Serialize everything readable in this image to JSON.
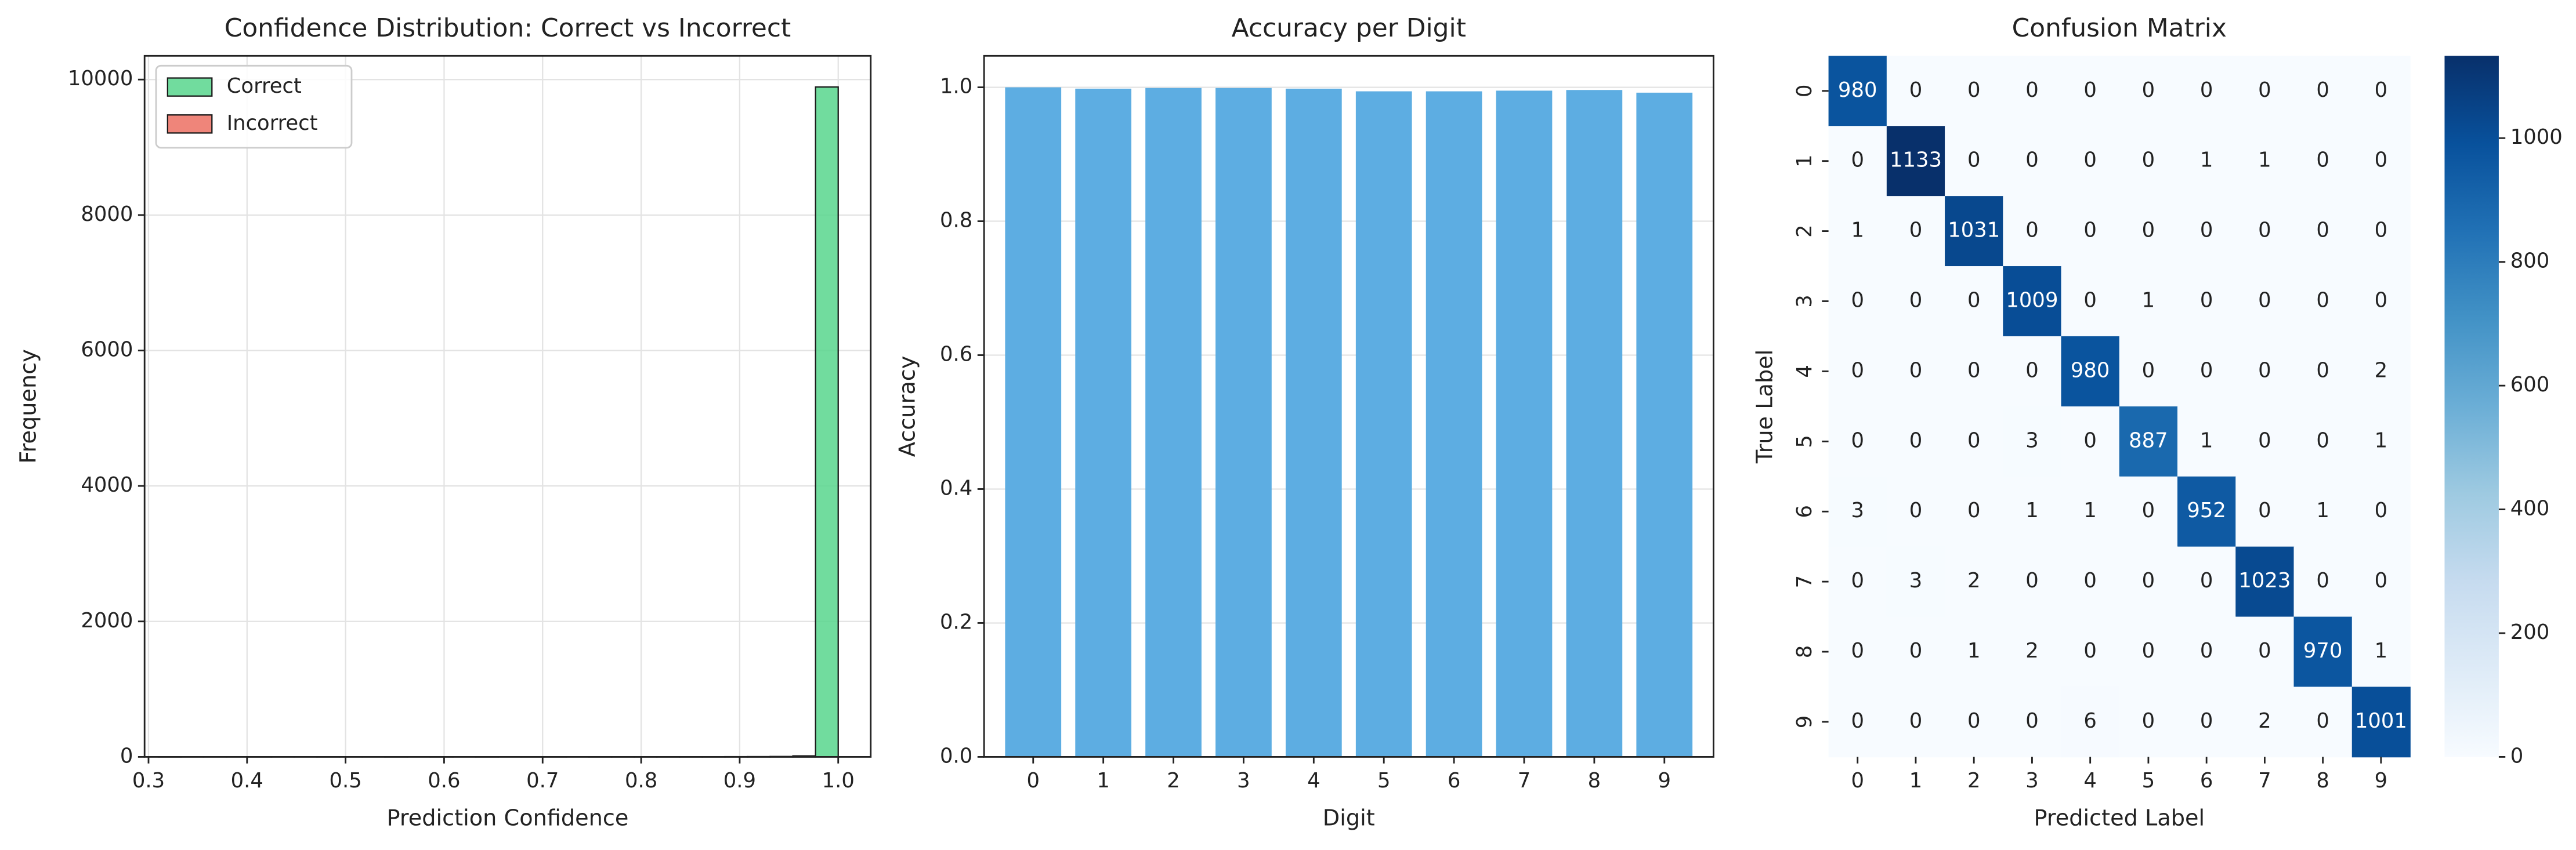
{
  "chart_data": [
    {
      "type": "histogram",
      "title": "Confidence Distribution: Correct vs Incorrect",
      "x_label": "Prediction Confidence",
      "y_label": "Frequency",
      "bins": [
        0.31,
        0.333,
        0.356,
        0.379,
        0.402,
        0.425,
        0.448,
        0.471,
        0.494,
        0.517,
        0.54,
        0.563,
        0.586,
        0.609,
        0.632,
        0.655,
        0.678,
        0.701,
        0.724,
        0.747,
        0.77,
        0.793,
        0.816,
        0.839,
        0.862,
        0.885,
        0.908,
        0.931,
        0.954,
        0.977,
        1.0
      ],
      "series": [
        {
          "name": "Correct",
          "color": "#58d68d",
          "values": [
            1,
            0,
            0,
            0,
            1,
            0,
            0,
            1,
            0,
            0,
            1,
            0,
            1,
            0,
            1,
            0,
            1,
            1,
            0,
            1,
            1,
            2,
            1,
            2,
            2,
            3,
            4,
            6,
            15,
            9890
          ]
        },
        {
          "name": "Incorrect",
          "color": "#ec7063",
          "values": [
            1,
            1,
            2,
            1,
            1,
            2,
            1,
            2,
            1,
            2,
            1,
            1,
            2,
            1,
            2,
            1,
            1,
            1,
            1,
            1,
            1,
            1,
            1,
            1,
            1,
            1,
            1,
            1,
            1,
            0
          ]
        }
      ],
      "xlim": [
        0.296,
        1.033
      ],
      "xticks": [
        0.3,
        0.4,
        0.5,
        0.6,
        0.7,
        0.8,
        0.9,
        {
          "value": 1,
          "label": "1.0"
        }
      ],
      "ylim": [
        0,
        10350
      ],
      "yticks": [
        0,
        2000,
        4000,
        6000,
        8000,
        10000
      ],
      "grid": "both",
      "legend": "upper left"
    },
    {
      "type": "bar",
      "title": "Accuracy per Digit",
      "x_label": "Digit",
      "y_label": "Accuracy",
      "categories": [
        "0",
        "1",
        "2",
        "3",
        "4",
        "5",
        "6",
        "7",
        "8",
        "9"
      ],
      "values": [
        1.0,
        0.998,
        0.999,
        0.999,
        0.998,
        0.994,
        0.994,
        0.995,
        0.996,
        0.992
      ],
      "color": "#5dade2",
      "ylim": [
        0,
        1.047
      ],
      "yticks": [
        {
          "value": 0,
          "label": "0.0"
        },
        0.2,
        0.4,
        0.6,
        0.8,
        {
          "value": 1,
          "label": "1.0"
        }
      ],
      "grid": "y"
    },
    {
      "type": "heatmap",
      "title": "Confusion Matrix",
      "x_label": "Predicted Label",
      "y_label": "True Label",
      "x_categories": [
        "0",
        "1",
        "2",
        "3",
        "4",
        "5",
        "6",
        "7",
        "8",
        "9"
      ],
      "y_categories": [
        "0",
        "1",
        "2",
        "3",
        "4",
        "5",
        "6",
        "7",
        "8",
        "9"
      ],
      "matrix": [
        [
          980,
          0,
          0,
          0,
          0,
          0,
          0,
          0,
          0,
          0
        ],
        [
          0,
          1133,
          0,
          0,
          0,
          0,
          1,
          1,
          0,
          0
        ],
        [
          1,
          0,
          1031,
          0,
          0,
          0,
          0,
          0,
          0,
          0
        ],
        [
          0,
          0,
          0,
          1009,
          0,
          1,
          0,
          0,
          0,
          0
        ],
        [
          0,
          0,
          0,
          0,
          980,
          0,
          0,
          0,
          0,
          2
        ],
        [
          0,
          0,
          0,
          3,
          0,
          887,
          1,
          0,
          0,
          1
        ],
        [
          3,
          0,
          0,
          1,
          1,
          0,
          952,
          0,
          1,
          0
        ],
        [
          0,
          3,
          2,
          0,
          0,
          0,
          0,
          1023,
          0,
          0
        ],
        [
          0,
          0,
          1,
          2,
          0,
          0,
          0,
          0,
          970,
          1
        ],
        [
          0,
          0,
          0,
          0,
          6,
          0,
          0,
          2,
          0,
          1001
        ]
      ],
      "colormap": "Blues",
      "clim": [
        0,
        1133
      ],
      "colorbar_ticks": [
        0,
        200,
        400,
        600,
        800,
        1000
      ]
    }
  ]
}
